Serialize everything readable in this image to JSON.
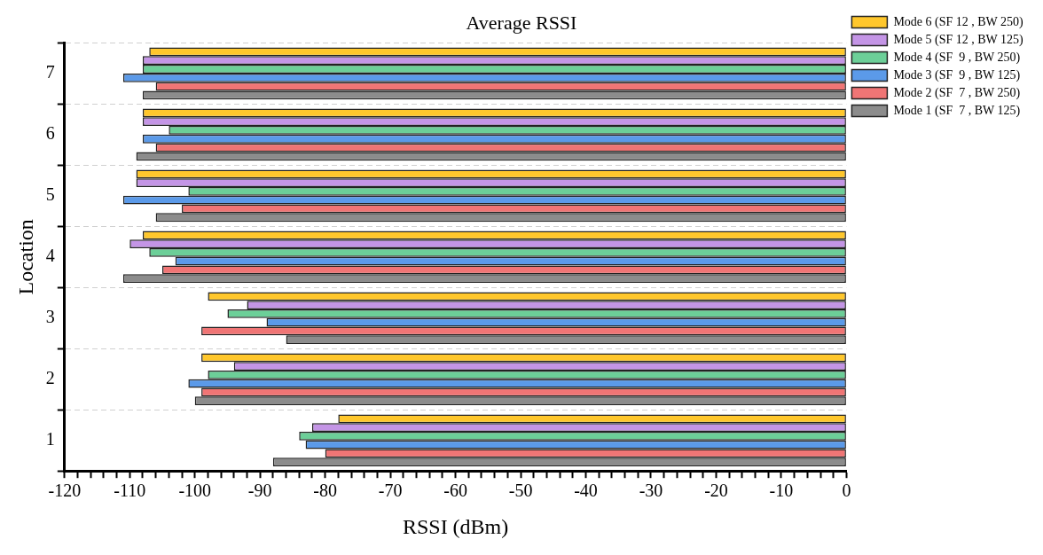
{
  "chart_data": {
    "type": "bar",
    "orientation": "horizontal",
    "title": "Average RSSI",
    "xlabel": "RSSI (dBm)",
    "ylabel": "Location",
    "categories": [
      "7",
      "6",
      "5",
      "4",
      "3",
      "2",
      "1"
    ],
    "series": [
      {
        "name": "Mode 6 (SF 12 , BW 250)",
        "color": "#ffc72c",
        "values": [
          -107,
          -108,
          -109,
          -108,
          -98,
          -99,
          -78
        ]
      },
      {
        "name": "Mode 5 (SF 12 , BW 125)",
        "color": "#c495e6",
        "values": [
          -108,
          -108,
          -109,
          -110,
          -92,
          -94,
          -82
        ]
      },
      {
        "name": "Mode 4 (SF  9 , BW 250)",
        "color": "#6ccf98",
        "values": [
          -108,
          -104,
          -101,
          -107,
          -95,
          -98,
          -84
        ]
      },
      {
        "name": "Mode 3 (SF  9 , BW 125)",
        "color": "#5b9ae9",
        "values": [
          -111,
          -108,
          -111,
          -103,
          -89,
          -101,
          -83
        ]
      },
      {
        "name": "Mode 2 (SF  7 , BW 250)",
        "color": "#f07575",
        "values": [
          -106,
          -106,
          -102,
          -105,
          -99,
          -99,
          -80
        ]
      },
      {
        "name": "Mode 1 (SF  7 , BW 125)",
        "color": "#8c8c8c",
        "values": [
          -108,
          -109,
          -106,
          -111,
          -86,
          -100,
          -88
        ]
      }
    ],
    "xlim": [
      -120,
      0
    ],
    "xticks": [
      -120,
      {
        "value": -118,
        "label": null
      },
      {
        "value": -116,
        "label": null
      },
      {
        "value": -114,
        "label": null
      },
      {
        "value": -112,
        "label": null
      },
      -110,
      {
        "value": -108,
        "label": null
      },
      {
        "value": -106,
        "label": null
      },
      {
        "value": -104,
        "label": null
      },
      {
        "value": -102,
        "label": null
      },
      -100,
      {
        "value": -98,
        "label": null
      },
      {
        "value": -96,
        "label": null
      },
      {
        "value": -94,
        "label": null
      },
      {
        "value": -92,
        "label": null
      },
      -90,
      {
        "value": -88,
        "label": null
      },
      {
        "value": -86,
        "label": null
      },
      {
        "value": -84,
        "label": null
      },
      {
        "value": -82,
        "label": null
      },
      -80,
      {
        "value": -78,
        "label": null
      },
      {
        "value": -76,
        "label": null
      },
      {
        "value": -74,
        "label": null
      },
      {
        "value": -72,
        "label": null
      },
      -70,
      {
        "value": -68,
        "label": null
      },
      {
        "value": -66,
        "label": null
      },
      {
        "value": -64,
        "label": null
      },
      {
        "value": -62,
        "label": null
      },
      -60,
      {
        "value": -58,
        "label": null
      },
      {
        "value": -56,
        "label": null
      },
      {
        "value": -54,
        "label": null
      },
      {
        "value": -52,
        "label": null
      },
      -50,
      {
        "value": -48,
        "label": null
      },
      {
        "value": -46,
        "label": null
      },
      {
        "value": -44,
        "label": null
      },
      {
        "value": -42,
        "label": null
      },
      -40,
      {
        "value": -38,
        "label": null
      },
      {
        "value": -36,
        "label": null
      },
      {
        "value": -34,
        "label": null
      },
      {
        "value": -32,
        "label": null
      },
      -30,
      {
        "value": -28,
        "label": null
      },
      {
        "value": -26,
        "label": null
      },
      {
        "value": -24,
        "label": null
      },
      {
        "value": -22,
        "label": null
      },
      -20,
      {
        "value": -18,
        "label": null
      },
      {
        "value": -16,
        "label": null
      },
      {
        "value": -14,
        "label": null
      },
      {
        "value": -12,
        "label": null
      },
      -10,
      {
        "value": -8,
        "label": null
      },
      {
        "value": -6,
        "label": null
      },
      {
        "value": -4,
        "label": null
      },
      {
        "value": -2,
        "label": null
      },
      0
    ],
    "grid": "y",
    "legend": "top right"
  }
}
